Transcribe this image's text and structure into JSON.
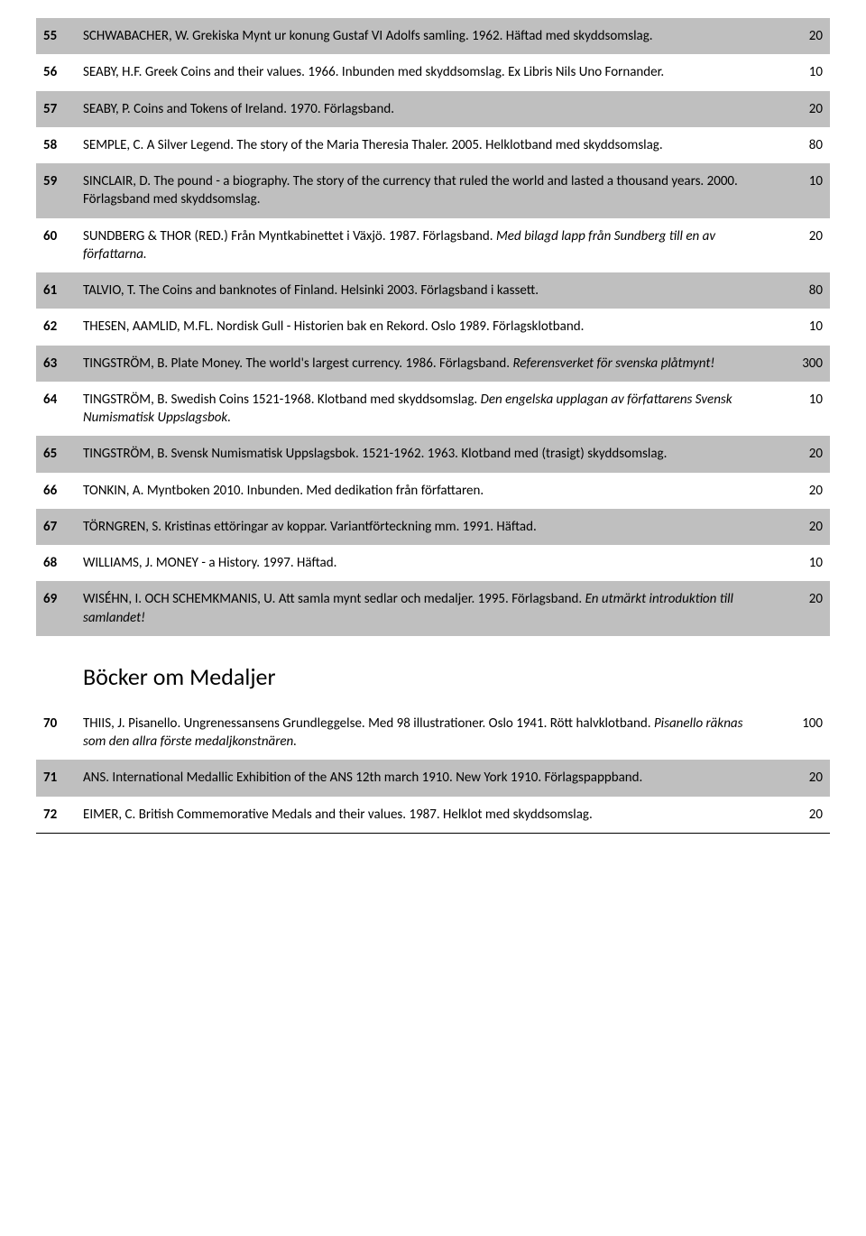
{
  "rows": [
    {
      "n": "55",
      "shaded": true,
      "price": "20",
      "desc": "SCHWABACHER, W. Grekiska Mynt ur konung Gustaf VI Adolfs samling. 1962. Häftad med skyddsomslag."
    },
    {
      "n": "56",
      "shaded": false,
      "price": "10",
      "desc": "SEABY, H.F. Greek Coins and their values. 1966. Inbunden med skyddsomslag. Ex Libris Nils Uno Fornander."
    },
    {
      "n": "57",
      "shaded": true,
      "price": "20",
      "desc": "SEABY, P. Coins and Tokens of Ireland. 1970. Förlagsband."
    },
    {
      "n": "58",
      "shaded": false,
      "price": "80",
      "desc": "SEMPLE, C. A Silver Legend. The story of the Maria Theresia Thaler. 2005. Helklotband med skyddsomslag."
    },
    {
      "n": "59",
      "shaded": true,
      "price": "10",
      "desc": "SINCLAIR, D. The pound - a biography. The story of the currency that ruled the world and lasted a thousand years. 2000. Förlagsband med skyddsomslag."
    },
    {
      "n": "60",
      "shaded": false,
      "price": "20",
      "desc": "SUNDBERG & THOR (RED.) Från Myntkabinettet i Växjö. 1987. Förlagsband. ",
      "italic": "Med bilagd lapp från Sundberg till en av författarna."
    },
    {
      "n": "61",
      "shaded": true,
      "price": "80",
      "desc": "TALVIO, T. The Coins and banknotes of Finland. Helsinki 2003. Förlagsband i kassett."
    },
    {
      "n": "62",
      "shaded": false,
      "price": "10",
      "desc": "THESEN, AAMLID, M.FL. Nordisk Gull - Historien bak en Rekord. Oslo 1989. Förlagsklotband."
    },
    {
      "n": "63",
      "shaded": true,
      "price": "300",
      "desc": "TINGSTRÖM, B. Plate Money. The world's largest currency. 1986. Förlagsband. ",
      "italic": "Referensverket för svenska plåtmynt!"
    },
    {
      "n": "64",
      "shaded": false,
      "price": "10",
      "desc": "TINGSTRÖM, B. Swedish Coins 1521-1968. Klotband med skyddsomslag. ",
      "italic": "Den engelska upplagan av författarens Svensk Numismatisk Uppslagsbok."
    },
    {
      "n": "65",
      "shaded": true,
      "price": "20",
      "desc": "TINGSTRÖM, B. Svensk Numismatisk Uppslagsbok. 1521-1962. 1963. Klotband med (trasigt) skyddsomslag."
    },
    {
      "n": "66",
      "shaded": false,
      "price": "20",
      "desc": "TONKIN, A. Myntboken 2010. Inbunden. Med dedikation från författaren."
    },
    {
      "n": "67",
      "shaded": true,
      "price": "20",
      "desc": "TÖRNGREN, S. Kristinas ettöringar av koppar. Variantförteckning mm. 1991. Häftad."
    },
    {
      "n": "68",
      "shaded": false,
      "price": "10",
      "desc": "WILLIAMS, J. MONEY - a History. 1997. Häftad."
    },
    {
      "n": "69",
      "shaded": true,
      "price": "20",
      "desc": "WISÉHN, I. OCH SCHEMKMANIS, U. Att samla mynt sedlar och medaljer. 1995. Förlagsband. ",
      "italic": "En utmärkt introduktion till samlandet!"
    }
  ],
  "section_heading": "Böcker om Medaljer",
  "rows2": [
    {
      "n": "70",
      "shaded": false,
      "price": "100",
      "desc": "THIIS, J. Pisanello. Ungrenessansens Grundleggelse. Med 98 illustrationer. Oslo 1941. Rött halvklotband. ",
      "italic": "Pisanello räknas som den allra förste medaljkonstnären."
    },
    {
      "n": "71",
      "shaded": true,
      "price": "20",
      "desc": "ANS. International Medallic Exhibition of the ANS 12th march 1910. New York 1910. Förlagspappband."
    },
    {
      "n": "72",
      "shaded": false,
      "price": "20",
      "desc": "EIMER, C. British Commemorative Medals and their values. 1987. Helklot med skyddsomslag."
    }
  ]
}
